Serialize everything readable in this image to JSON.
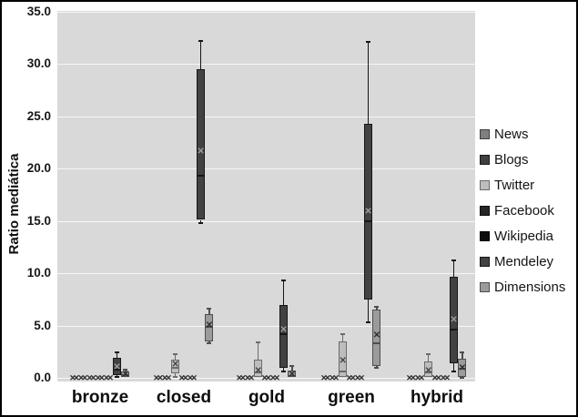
{
  "chart_data": {
    "type": "boxplot",
    "title": "",
    "xlabel": "",
    "ylabel": "Ratio mediática",
    "ylim": [
      0,
      35
    ],
    "ytick_step": 5,
    "yticks": [
      "0.0",
      "5.0",
      "10.0",
      "15.0",
      "20.0",
      "25.0",
      "30.0",
      "35.0"
    ],
    "grid": "horizontal",
    "plot_bg_color": "#d9d9d9",
    "gridline_color": "#ececec",
    "legend_position": "right",
    "categories": [
      "bronze",
      "closed",
      "gold",
      "green",
      "hybrid"
    ],
    "zero_note": "series with null box entries are plotted as x-marks at 0 on the baseline",
    "series": [
      {
        "name": "News",
        "fill": "#7f7f7f",
        "border": "#3f3f3f",
        "mean_color": "#333333",
        "boxes": [
          null,
          null,
          null,
          null,
          null
        ]
      },
      {
        "name": "Blogs",
        "fill": "#404040",
        "border": "#1a1a1a",
        "mean_color": "#aaaaaa",
        "boxes": [
          null,
          null,
          null,
          null,
          null
        ]
      },
      {
        "name": "Twitter",
        "fill": "#bdbdbd",
        "border": "#6b6b6b",
        "mean_color": "#474747",
        "boxes": [
          null,
          {
            "lo": 0.1,
            "q1": 0.4,
            "median": 1.0,
            "mean": 1.2,
            "q3": 1.7,
            "hi": 2.3
          },
          {
            "lo": 0.05,
            "q1": 0.1,
            "median": 0.5,
            "mean": 0.6,
            "q3": 1.7,
            "hi": 3.4
          },
          {
            "lo": 0.05,
            "q1": 0.1,
            "median": 0.6,
            "mean": 1.6,
            "q3": 3.5,
            "hi": 4.2
          },
          {
            "lo": 0.05,
            "q1": 0.1,
            "median": 0.5,
            "mean": 0.6,
            "q3": 1.6,
            "hi": 2.3
          }
        ]
      },
      {
        "name": "Facebook",
        "fill": "#262626",
        "border": "#0d0d0d",
        "mean_color": "#aaaaaa",
        "boxes": [
          null,
          null,
          null,
          null,
          null
        ]
      },
      {
        "name": "Wikipedia",
        "fill": "#0d0d0d",
        "border": "#000000",
        "mean_color": "#aaaaaa",
        "boxes": [
          null,
          null,
          null,
          null,
          null
        ]
      },
      {
        "name": "Mendeley",
        "fill": "#424242",
        "border": "#161616",
        "mean_color": "#9c9c9c",
        "boxes": [
          {
            "lo": 0.05,
            "q1": 0.3,
            "median": 0.8,
            "mean": 1.0,
            "q3": 1.9,
            "hi": 2.4
          },
          {
            "lo": 14.8,
            "q1": 15.1,
            "median": 19.3,
            "mean": 21.6,
            "q3": 29.5,
            "hi": 32.2
          },
          {
            "lo": 0.6,
            "q1": 1.0,
            "median": 4.2,
            "mean": 4.5,
            "q3": 7.0,
            "hi": 9.3
          },
          {
            "lo": 5.3,
            "q1": 7.5,
            "median": 15.0,
            "mean": 15.8,
            "q3": 24.3,
            "hi": 32.1
          },
          {
            "lo": 0.6,
            "q1": 1.4,
            "median": 4.6,
            "mean": 5.5,
            "q3": 9.7,
            "hi": 11.2
          }
        ]
      },
      {
        "name": "Dimensions",
        "fill": "#9b9b9b",
        "border": "#4e4e4e",
        "mean_color": "#2e2e2e",
        "boxes": [
          {
            "lo": 0.0,
            "q1": 0.05,
            "median": 0.3,
            "mean": 0.3,
            "q3": 0.65,
            "hi": 0.8
          },
          {
            "lo": 3.3,
            "q1": 3.5,
            "median": 4.9,
            "mean": 5.0,
            "q3": 6.1,
            "hi": 6.6
          },
          {
            "lo": 0.0,
            "q1": 0.05,
            "median": 0.2,
            "mean": 0.25,
            "q3": 0.7,
            "hi": 1.1
          },
          {
            "lo": 0.95,
            "q1": 1.1,
            "median": 3.3,
            "mean": 4.0,
            "q3": 6.5,
            "hi": 6.8
          },
          {
            "lo": 0.0,
            "q1": 0.1,
            "median": 0.9,
            "mean": 0.9,
            "q3": 1.8,
            "hi": 2.4
          }
        ]
      }
    ]
  }
}
